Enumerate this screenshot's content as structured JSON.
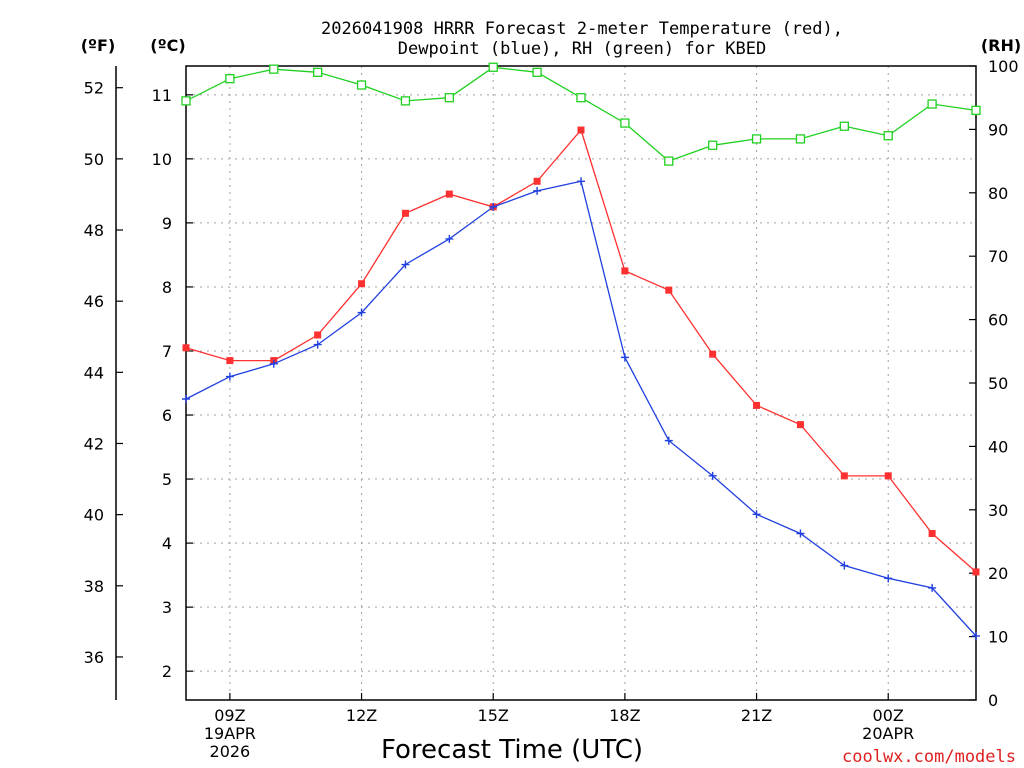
{
  "chart_data": {
    "type": "line",
    "title": [
      "2026041908 HRRR Forecast 2-meter Temperature (red),",
      "Dewpoint (blue), RH (green) for KBED"
    ],
    "xlabel": "Forecast Time (UTC)",
    "credit": "coolwx.com/models",
    "axis_units": {
      "fahrenheit": "(ºF)",
      "celsius": "(ºC)",
      "rh": "(RH)"
    },
    "x_hours": [
      8,
      9,
      10,
      11,
      12,
      13,
      14,
      15,
      16,
      17,
      18,
      19,
      20,
      21,
      22,
      23,
      24,
      25,
      26
    ],
    "x_ticks": [
      {
        "hour": 9,
        "lines": [
          "09Z",
          "19APR",
          "2026"
        ]
      },
      {
        "hour": 12,
        "lines": [
          "12Z"
        ]
      },
      {
        "hour": 15,
        "lines": [
          "15Z"
        ]
      },
      {
        "hour": 18,
        "lines": [
          "18Z"
        ]
      },
      {
        "hour": 21,
        "lines": [
          "21Z"
        ]
      },
      {
        "hour": 24,
        "lines": [
          "00Z",
          "20APR"
        ]
      }
    ],
    "xlim": [
      8,
      26
    ],
    "celsius_range": [
      1.55,
      11.45
    ],
    "rh_range": [
      0,
      100
    ],
    "celsius_ticks": [
      2,
      3,
      4,
      5,
      6,
      7,
      8,
      9,
      10,
      11
    ],
    "fahrenheit_ticks": [
      36,
      38,
      40,
      42,
      44,
      46,
      48,
      50,
      52
    ],
    "rh_ticks": [
      0,
      10,
      20,
      30,
      40,
      50,
      60,
      70,
      80,
      90,
      100
    ],
    "series": [
      {
        "name": "Temperature",
        "unit": "C",
        "color": "#ff3030",
        "marker": "square",
        "values": [
          7.05,
          6.85,
          6.85,
          7.25,
          8.05,
          9.15,
          9.45,
          9.25,
          9.65,
          10.45,
          8.25,
          7.95,
          6.95,
          6.15,
          5.85,
          5.05,
          5.05,
          4.15,
          3.55
        ]
      },
      {
        "name": "Dewpoint",
        "unit": "C",
        "color": "#2040e0",
        "marker": "plus",
        "values": [
          6.25,
          6.6,
          6.8,
          7.1,
          7.6,
          8.35,
          8.75,
          9.25,
          9.5,
          9.65,
          6.9,
          5.6,
          5.05,
          4.45,
          4.15,
          3.65,
          3.45,
          3.3,
          2.55
        ]
      },
      {
        "name": "RH",
        "unit": "%",
        "color": "#20d020",
        "marker": "square-open",
        "values": [
          94.5,
          98,
          99.5,
          99,
          97,
          94.5,
          95,
          99.8,
          99,
          95,
          91,
          85,
          87.5,
          88.5,
          88.5,
          90.5,
          89,
          94,
          93
        ]
      }
    ]
  }
}
